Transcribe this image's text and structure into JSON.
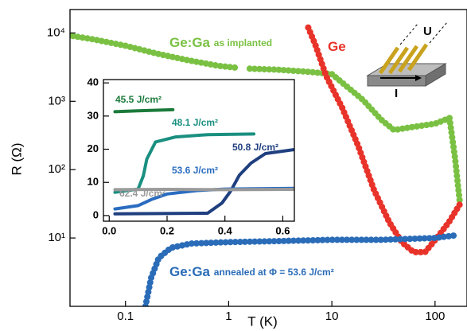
{
  "chart_data": [
    {
      "type": "line",
      "x_label": "T (K)",
      "y_label": "R (Ω)",
      "xlog": true,
      "ylog": true,
      "xlim": [
        0.029,
        204
      ],
      "ylim": [
        1,
        22000
      ],
      "xticks": [
        0.1,
        1,
        10,
        100
      ],
      "yticks": [
        {
          "value": 10,
          "label": "10¹"
        },
        {
          "value": 100,
          "label": "10²"
        },
        {
          "value": 1000,
          "label": "10³"
        },
        {
          "value": 10000,
          "label": "10⁴"
        }
      ],
      "annotations": [
        "U",
        "I"
      ],
      "series": [
        {
          "name": "Ge:Ga",
          "note": "as implanted",
          "color": "#7ac143",
          "x": [
            0.025,
            0.05,
            0.1,
            0.2,
            0.4,
            0.8,
            1.2,
            null,
            1.6,
            3,
            6,
            10,
            20,
            30,
            40,
            60,
            100,
            138,
            156,
            174
          ],
          "values": [
            9500,
            8000,
            6500,
            5000,
            4000,
            3300,
            3100,
            null,
            3000,
            2900,
            2700,
            2500,
            1050,
            540,
            380,
            420,
            470,
            570,
            150,
            33
          ]
        },
        {
          "name": "Ge",
          "note": "",
          "color": "#e8332a",
          "x": [
            5.9,
            6.9,
            8.8,
            12.6,
            18,
            25.5,
            36,
            47.6,
            62,
            80,
            104,
            136,
            178
          ],
          "values": [
            12000,
            6800,
            2350,
            800,
            223,
            51,
            17,
            8.7,
            6.2,
            6.2,
            10,
            17,
            33
          ]
        },
        {
          "name": "Ge:Ga",
          "note": "annealed at Φ = 53.6 J/cm²",
          "color": "#2a6cb8",
          "x": [
            0.156,
            0.177,
            0.21,
            0.276,
            0.43,
            1,
            3,
            10,
            30,
            100,
            164
          ],
          "values": [
            1,
            2.6,
            5.1,
            7.2,
            8.3,
            8.7,
            9,
            9.4,
            9.4,
            10,
            11
          ]
        }
      ]
    },
    {
      "type": "line",
      "xlog": false,
      "ylog": false,
      "xlim": [
        -0.02,
        0.64
      ],
      "ylim": [
        -1.7,
        41
      ],
      "xticks": [
        {
          "value": 0,
          "label": "0.0"
        },
        0.2,
        0.4,
        0.6
      ],
      "yticks": [
        0,
        10,
        20,
        30,
        40
      ],
      "series": [
        {
          "name": "45.5 J/cm²",
          "color": "#1b7a3a",
          "x": [
            0.02,
            0.1,
            0.22
          ],
          "values": [
            31.3,
            31.6,
            31.9
          ]
        },
        {
          "name": "48.1 J/cm²",
          "color": "#1a8f80",
          "x": [
            0.02,
            0.1,
            0.118,
            0.13,
            0.16,
            0.23,
            0.34,
            0.5
          ],
          "values": [
            7,
            8,
            12,
            17,
            22.2,
            23.7,
            24.4,
            24.6
          ]
        },
        {
          "name": "50.8 J/cm²",
          "color": "#1f3f7f",
          "x": [
            0.02,
            0.34,
            0.39,
            0.42,
            0.45,
            0.49,
            0.54,
            0.64
          ],
          "values": [
            0.5,
            0.7,
            3.8,
            7.4,
            12.2,
            15.8,
            18.7,
            19.9
          ]
        },
        {
          "name": "53.6 J/cm²",
          "color": "#2a6cc0",
          "x": [
            0.02,
            0.1,
            0.15,
            0.2,
            0.3,
            0.4,
            0.64
          ],
          "values": [
            2,
            3,
            5,
            6.5,
            7.5,
            8,
            8.2
          ]
        },
        {
          "name": "62.4 J/cm²",
          "color": "#9a9a9a",
          "x": [
            0.02,
            0.2,
            0.4,
            0.64
          ],
          "values": [
            7.8,
            7.9,
            7.8,
            7.9
          ]
        }
      ]
    }
  ]
}
